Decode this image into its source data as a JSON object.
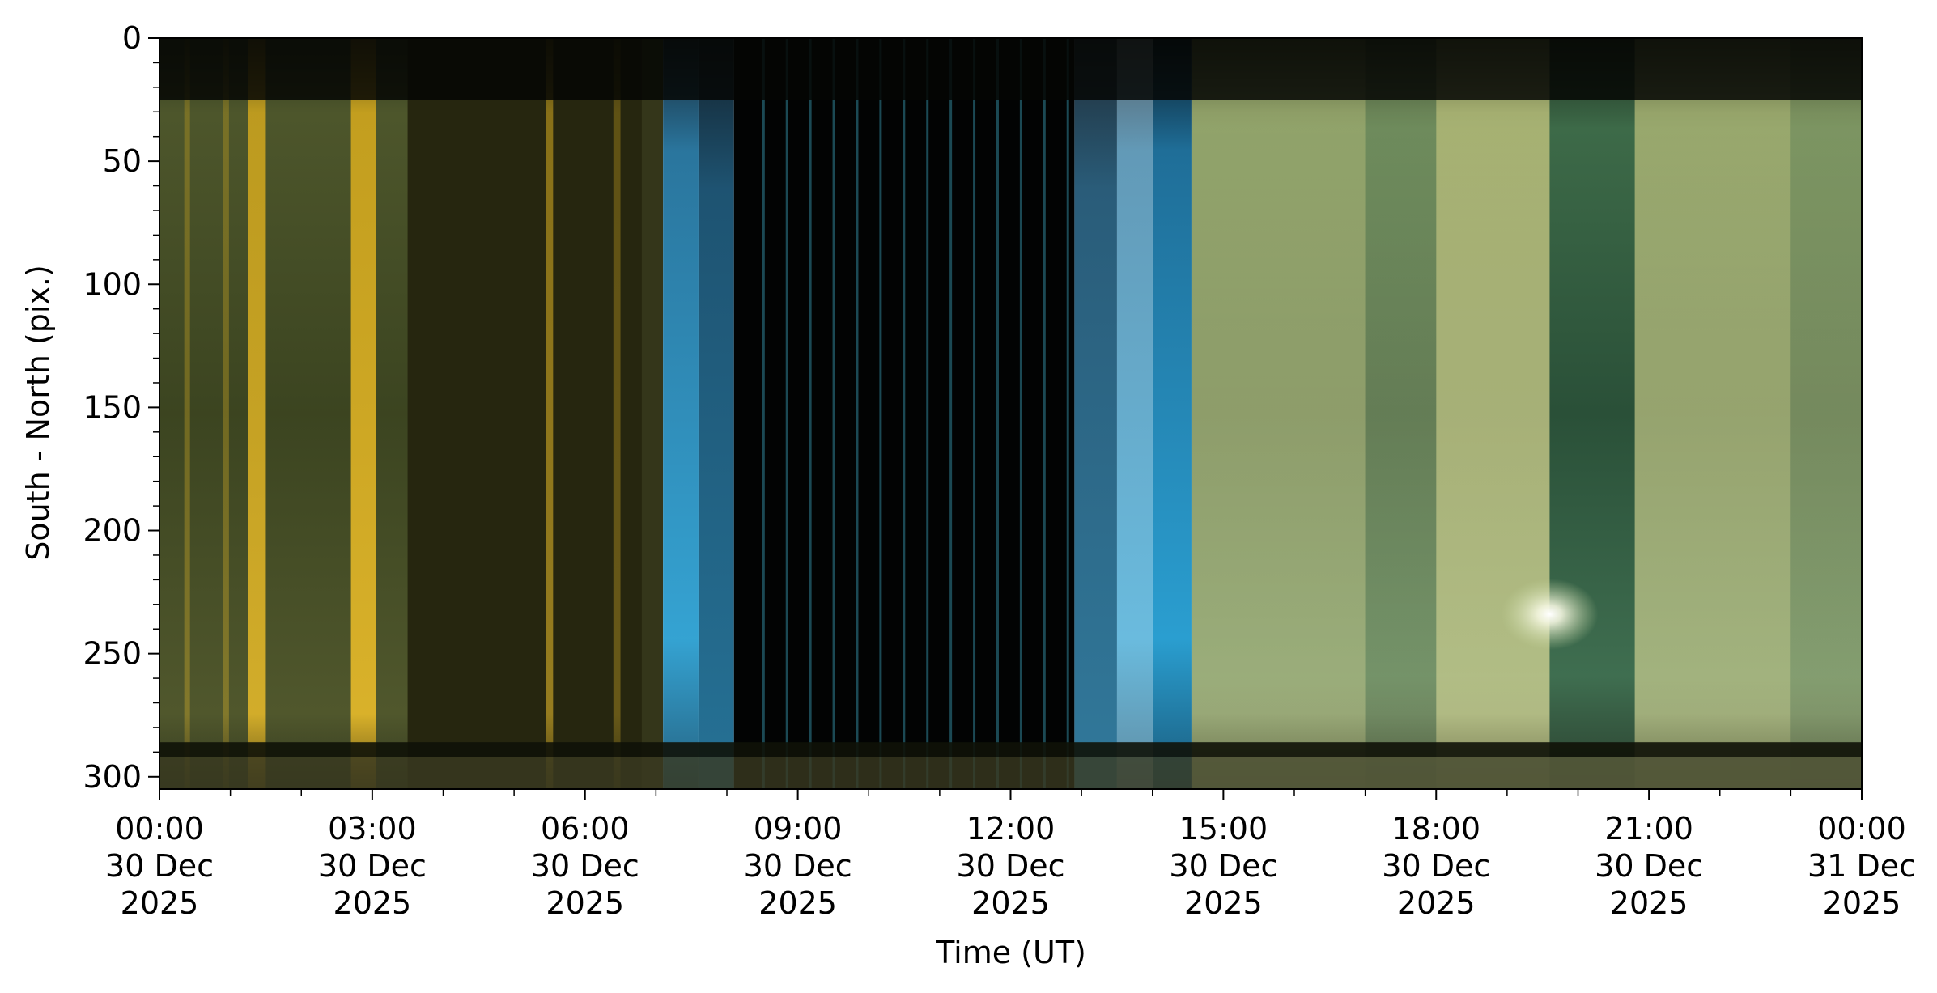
{
  "chart_data": {
    "type": "heatmap",
    "title": "",
    "xlabel": "Time (UT)",
    "ylabel": "South - North (pix.)",
    "xlim": [
      "2025-12-30T00:00",
      "2025-12-31T00:00"
    ],
    "ylim": [
      305,
      0
    ],
    "x_ticks": [
      {
        "time": "00:00",
        "day": "30 Dec",
        "year": "2025"
      },
      {
        "time": "03:00",
        "day": "30 Dec",
        "year": "2025"
      },
      {
        "time": "06:00",
        "day": "30 Dec",
        "year": "2025"
      },
      {
        "time": "09:00",
        "day": "30 Dec",
        "year": "2025"
      },
      {
        "time": "12:00",
        "day": "30 Dec",
        "year": "2025"
      },
      {
        "time": "15:00",
        "day": "30 Dec",
        "year": "2025"
      },
      {
        "time": "18:00",
        "day": "30 Dec",
        "year": "2025"
      },
      {
        "time": "21:00",
        "day": "30 Dec",
        "year": "2025"
      },
      {
        "time": "00:00",
        "day": "31 Dec",
        "year": "2025"
      }
    ],
    "y_ticks": [
      0,
      50,
      100,
      150,
      200,
      250,
      300
    ],
    "grid": false,
    "legend": "none"
  }
}
